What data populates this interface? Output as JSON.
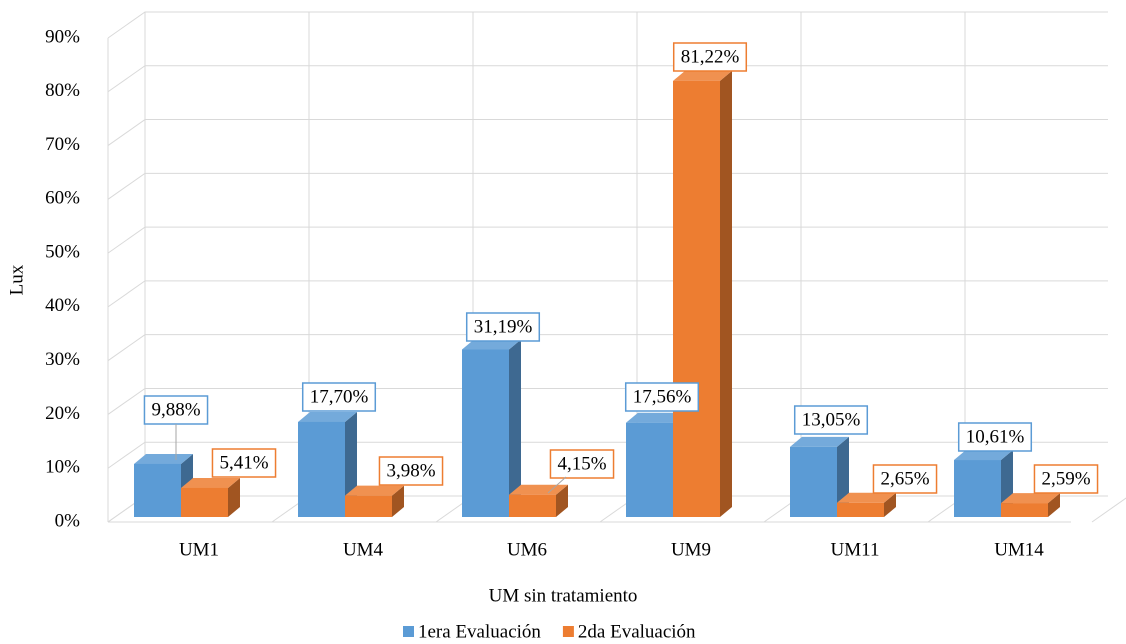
{
  "chart_data": {
    "type": "bar3d",
    "categories": [
      "UM1",
      "UM4",
      "UM6",
      "UM9",
      "UM11",
      "UM14"
    ],
    "series": [
      {
        "name": "1era Evaluación",
        "color": "#5b9bd5",
        "values": [
          9.88,
          17.7,
          31.19,
          17.56,
          13.05,
          10.61
        ],
        "value_labels": [
          "9,88%",
          "17,70%",
          "31,19%",
          "17,56%",
          "13,05%",
          "10,61%"
        ]
      },
      {
        "name": "2da Evaluación",
        "color": "#ed7d31",
        "values": [
          5.41,
          3.98,
          4.15,
          81.22,
          2.65,
          2.59
        ],
        "value_labels": [
          "5,41%",
          "3,98%",
          "4,15%",
          "81,22%",
          "2,65%",
          "2,59%"
        ]
      }
    ],
    "x_label": "UM sin tratamiento",
    "y_label": "Lux",
    "ylim": [
      0,
      90
    ],
    "yticks": [
      {
        "value": 0,
        "label": "0%"
      },
      {
        "value": 10,
        "label": "10%"
      },
      {
        "value": 20,
        "label": "20%"
      },
      {
        "value": 30,
        "label": "30%"
      },
      {
        "value": 40,
        "label": "40%"
      },
      {
        "value": 50,
        "label": "50%"
      },
      {
        "value": 60,
        "label": "60%"
      },
      {
        "value": 70,
        "label": "70%"
      },
      {
        "value": 80,
        "label": "80%"
      },
      {
        "value": 90,
        "label": "90%"
      }
    ],
    "grid": true,
    "legend": "bottom"
  }
}
